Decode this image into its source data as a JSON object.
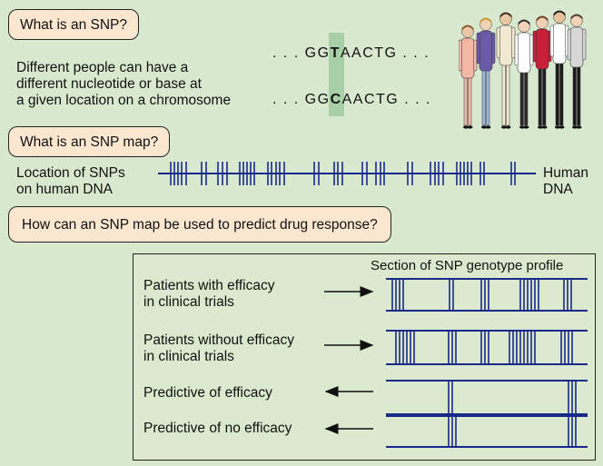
{
  "section1": {
    "question": "What is an SNP?",
    "explanation": [
      "Different people can have a",
      "different nucleotide or base at",
      "a given location on a chromosome"
    ],
    "seq_top": {
      "prefix": ". . .  GG",
      "base": "T",
      "suffix": "AACTG  . . ."
    },
    "seq_bottom": {
      "prefix": ". . .  GG",
      "base": "C",
      "suffix": "AACTG  . . ."
    }
  },
  "section2": {
    "question": "What is an SNP map?",
    "left_label": [
      "Location of SNPs",
      "on human DNA"
    ],
    "right_label": [
      "Human",
      "DNA"
    ]
  },
  "section3": {
    "question": "How can an SNP map be used to predict drug response?"
  },
  "panel": {
    "title": "Section of SNP genotype profile",
    "rows": [
      {
        "label": [
          "Patients with efficacy",
          "in clinical trials"
        ],
        "arrow": "right"
      },
      {
        "label": [
          "Patients without efficacy",
          "in clinical trials"
        ],
        "arrow": "right"
      },
      {
        "label": [
          "Predictive of efficacy"
        ],
        "arrow": "left"
      },
      {
        "label": [
          "Predictive of no efficacy"
        ],
        "arrow": "left"
      }
    ]
  },
  "colors": {
    "background": "#d9e9cf",
    "question_box": "#fbe6d0",
    "dna_line": "#1a2a8a",
    "highlight": "#a9cfa6"
  }
}
